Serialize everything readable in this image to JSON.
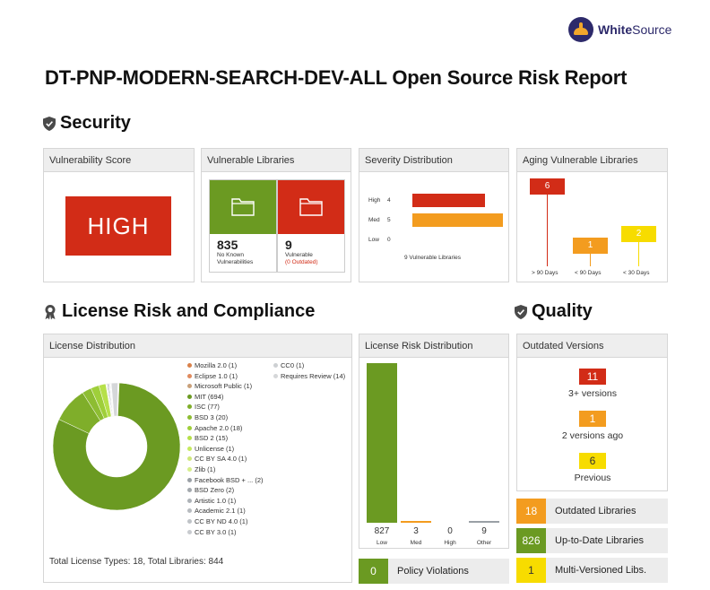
{
  "logo": {
    "text_bold": "White",
    "text_rest": "Source"
  },
  "report_title": "DT-PNP-MODERN-SEARCH-DEV-ALL Open Source Risk Report",
  "sections": {
    "security": "Security",
    "license": "License Risk and Compliance",
    "quality": "Quality"
  },
  "vulnerability_score": {
    "title": "Vulnerability Score",
    "value": "HIGH"
  },
  "vulnerable_libraries": {
    "title": "Vulnerable Libraries",
    "safe_count": "835",
    "safe_label_1": "No Known",
    "safe_label_2": "Vulnerabilities",
    "vuln_count": "9",
    "vuln_label": "Vulnerable",
    "vuln_sub": "(0 Outdated)"
  },
  "severity_distribution": {
    "title": "Severity Distribution",
    "rows": [
      {
        "label": "High",
        "count": "4",
        "value": 4
      },
      {
        "label": "Med",
        "count": "5",
        "value": 5
      },
      {
        "label": "Low",
        "count": "0",
        "value": 0
      }
    ],
    "footer": "9 Vulnerable Libraries"
  },
  "aging": {
    "title": "Aging Vulnerable Libraries",
    "items": [
      {
        "value": "6",
        "label": "> 90 Days"
      },
      {
        "value": "1",
        "label": "< 90 Days"
      },
      {
        "value": "2",
        "label": "< 30 Days"
      }
    ]
  },
  "license_distribution": {
    "title": "License Distribution",
    "legend_col1": [
      {
        "label": "Mozilla 2.0 (1)",
        "color": "#d9814a"
      },
      {
        "label": "Eclipse 1.0 (1)",
        "color": "#e08a5e"
      },
      {
        "label": "Microsoft Public (1)",
        "color": "#c9a07a"
      },
      {
        "label": "MIT (694)",
        "color": "#6b9a22"
      },
      {
        "label": "ISC (77)",
        "color": "#7fae2a"
      },
      {
        "label": "BSD 3 (20)",
        "color": "#8dbd32"
      },
      {
        "label": "Apache 2.0 (18)",
        "color": "#9fcf3a"
      },
      {
        "label": "BSD 2 (15)",
        "color": "#b6e04a"
      },
      {
        "label": "Unlicense (1)",
        "color": "#c5ea5e"
      },
      {
        "label": "CC BY SA 4.0 (1)",
        "color": "#cfe87a"
      },
      {
        "label": "Zlib (1)",
        "color": "#d6ee8a"
      },
      {
        "label": "Facebook BSD + ... (2)",
        "color": "#9aa0a6"
      },
      {
        "label": "BSD Zero (2)",
        "color": "#a3a8ad"
      },
      {
        "label": "Artistic 1.0 (1)",
        "color": "#adb2b7"
      },
      {
        "label": "Academic 2.1 (1)",
        "color": "#b7bbbf"
      },
      {
        "label": "CC BY ND 4.0 (1)",
        "color": "#bfc3c7"
      },
      {
        "label": "CC BY 3.0 (1)",
        "color": "#c8cbcf"
      }
    ],
    "legend_col2": [
      {
        "label": "CC0 (1)",
        "color": "#cdd0d3"
      },
      {
        "label": "Requires Review (14)",
        "color": "#d5d7d9"
      }
    ],
    "total": "Total License Types: 18, Total Libraries: 844"
  },
  "license_risk": {
    "title": "License Risk Distribution",
    "bars": [
      {
        "value": 827,
        "value_text": "827",
        "label": "Low",
        "color": "#6b9a22"
      },
      {
        "value": 3,
        "value_text": "3",
        "label": "Med",
        "color": "#f39c1f"
      },
      {
        "value": 0,
        "value_text": "0",
        "label": "High",
        "color": "#d22c17"
      },
      {
        "value": 9,
        "value_text": "9",
        "label": "Other",
        "color": "#9aa0a6"
      }
    ]
  },
  "policy_violations": {
    "value": "0",
    "label": "Policy Violations"
  },
  "outdated_versions": {
    "title": "Outdated Versions",
    "items": [
      {
        "value": "11",
        "label": "3+ versions"
      },
      {
        "value": "1",
        "label": "2 versions ago"
      },
      {
        "value": "6",
        "label": "Previous"
      }
    ]
  },
  "metrics": [
    {
      "value": "18",
      "label": "Outdated Libraries"
    },
    {
      "value": "826",
      "label": "Up-to-Date Libraries"
    },
    {
      "value": "1",
      "label": "Multi-Versioned Libs."
    }
  ],
  "colors": {
    "red": "#d22c17",
    "orange": "#f39c1f",
    "yellow": "#f7dc00",
    "green": "#6b9a22"
  }
}
